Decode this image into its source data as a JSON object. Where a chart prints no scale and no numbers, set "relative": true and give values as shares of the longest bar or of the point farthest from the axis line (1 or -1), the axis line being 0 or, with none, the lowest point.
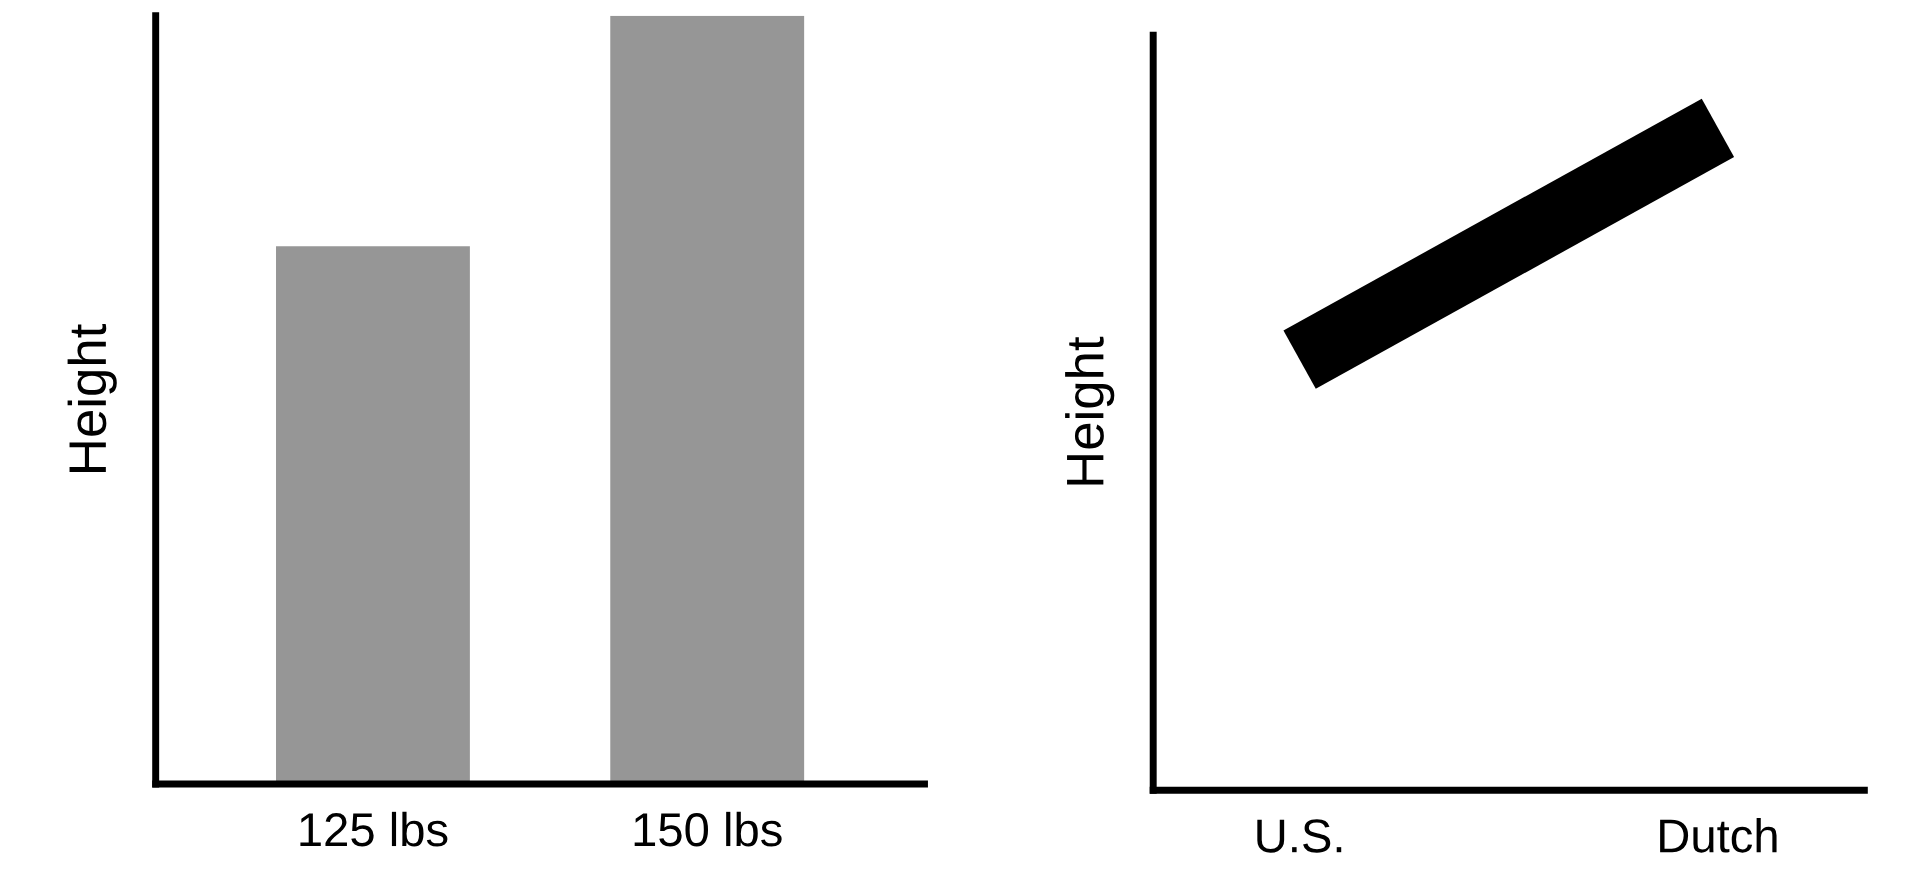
{
  "chart_data": [
    {
      "type": "bar",
      "ylabel": "Height",
      "categories": [
        "125 lbs",
        "150 lbs"
      ],
      "values": [
        0.7,
        1
      ],
      "color": "#969696",
      "relative": true,
      "tick_labels": "x"
    },
    {
      "type": "line",
      "ylabel": "Height",
      "categories": [
        "U.S.",
        "Dutch"
      ],
      "values": [
        0.65,
        1
      ],
      "color": "#000000",
      "relative": true,
      "tick_labels": "x"
    }
  ]
}
